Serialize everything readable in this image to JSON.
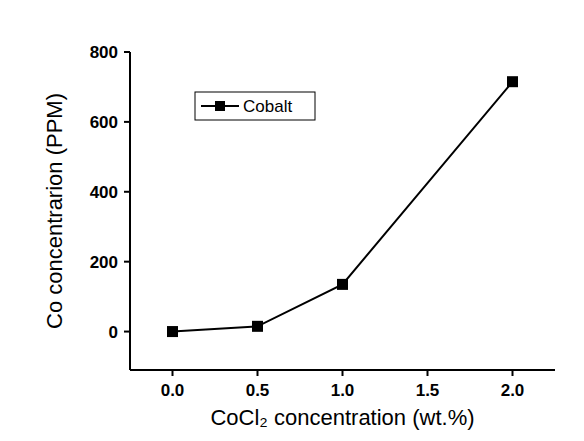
{
  "chart_data": {
    "type": "line",
    "y_label": "Co concentrarion (PPM)",
    "x_label": "CoCl₂ concentration (wt.%)",
    "x": [
      0,
      0.5,
      1.0,
      2.0
    ],
    "series": [
      {
        "name": "Cobalt",
        "color": "#000000",
        "marker": "square",
        "line_style": "solid",
        "values": [
          0,
          15,
          135,
          715
        ]
      }
    ],
    "xlim": [
      -0.25,
      2.25
    ],
    "xticks": [
      {
        "value": 0,
        "label": "0.0"
      },
      0.5,
      {
        "value": 1,
        "label": "1.0"
      },
      1.5,
      {
        "value": 2,
        "label": "2.0"
      }
    ],
    "ylim": [
      -110,
      800
    ],
    "yticks": [
      0,
      200,
      400,
      600,
      800
    ],
    "grid": false,
    "legend": "upper left"
  }
}
